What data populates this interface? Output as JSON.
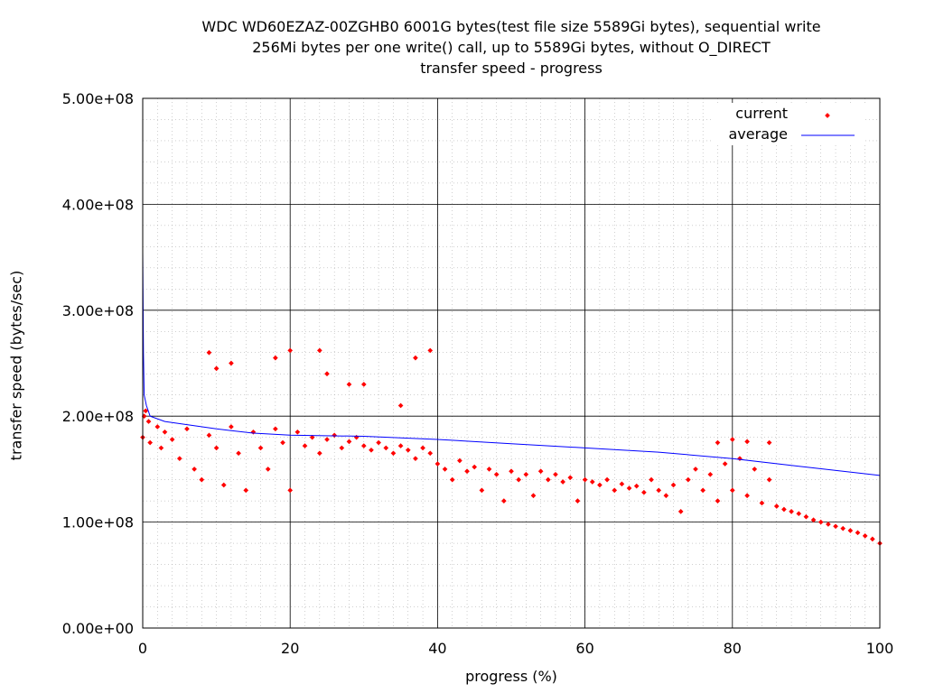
{
  "chart_data": {
    "type": "scatter",
    "title_lines": [
      "WDC WD60EZAZ-00ZGHB0 6001G bytes(test file size 5589Gi bytes), sequential write",
      "256Mi bytes per one write() call, up to 5589Gi bytes, without O_DIRECT",
      "transfer speed - progress"
    ],
    "xlabel": "progress (%)",
    "ylabel": "transfer speed (bytes/sec)",
    "xlim": [
      0,
      100
    ],
    "ylim": [
      0,
      500000000
    ],
    "x_ticks": [
      {
        "value": 0,
        "label": "0"
      },
      {
        "value": 20,
        "label": "20"
      },
      {
        "value": 40,
        "label": "40"
      },
      {
        "value": 60,
        "label": "60"
      },
      {
        "value": 80,
        "label": "80"
      },
      {
        "value": 100,
        "label": "100"
      }
    ],
    "y_ticks": [
      {
        "value": 0,
        "label": "0.00e+00"
      },
      {
        "value": 100000000,
        "label": "1.00e+08"
      },
      {
        "value": 200000000,
        "label": "2.00e+08"
      },
      {
        "value": 300000000,
        "label": "3.00e+08"
      },
      {
        "value": 400000000,
        "label": "4.00e+08"
      },
      {
        "value": 500000000,
        "label": "5.00e+08"
      }
    ],
    "grid": true,
    "legend_position": "top-right",
    "series": [
      {
        "name": "current",
        "type": "scatter",
        "color": "#ff0000",
        "points": [
          [
            0.0,
            180000000
          ],
          [
            0.2,
            200000000
          ],
          [
            0.4,
            205000000
          ],
          [
            0.8,
            195000000
          ],
          [
            1.0,
            175000000
          ],
          [
            2.0,
            190000000
          ],
          [
            2.5,
            170000000
          ],
          [
            3.0,
            185000000
          ],
          [
            4.0,
            178000000
          ],
          [
            5.0,
            160000000
          ],
          [
            6.0,
            188000000
          ],
          [
            7.0,
            150000000
          ],
          [
            8.0,
            140000000
          ],
          [
            9.0,
            182000000
          ],
          [
            10.0,
            170000000
          ],
          [
            11.0,
            135000000
          ],
          [
            12.0,
            190000000
          ],
          [
            13.0,
            165000000
          ],
          [
            14.0,
            130000000
          ],
          [
            15.0,
            185000000
          ],
          [
            16.0,
            170000000
          ],
          [
            17.0,
            150000000
          ],
          [
            18.0,
            188000000
          ],
          [
            19.0,
            175000000
          ],
          [
            20.0,
            130000000
          ],
          [
            21.0,
            185000000
          ],
          [
            22.0,
            172000000
          ],
          [
            23.0,
            180000000
          ],
          [
            24.0,
            165000000
          ],
          [
            25.0,
            178000000
          ],
          [
            26.0,
            182000000
          ],
          [
            27.0,
            170000000
          ],
          [
            28.0,
            176000000
          ],
          [
            29.0,
            180000000
          ],
          [
            30.0,
            172000000
          ],
          [
            31.0,
            168000000
          ],
          [
            32.0,
            175000000
          ],
          [
            33.0,
            170000000
          ],
          [
            34.0,
            165000000
          ],
          [
            35.0,
            172000000
          ],
          [
            36.0,
            168000000
          ],
          [
            37.0,
            160000000
          ],
          [
            38.0,
            170000000
          ],
          [
            39.0,
            165000000
          ],
          [
            40.0,
            155000000
          ],
          [
            41.0,
            150000000
          ],
          [
            42.0,
            140000000
          ],
          [
            43.0,
            158000000
          ],
          [
            44.0,
            148000000
          ],
          [
            45.0,
            152000000
          ],
          [
            46.0,
            130000000
          ],
          [
            47.0,
            150000000
          ],
          [
            48.0,
            145000000
          ],
          [
            49.0,
            120000000
          ],
          [
            50.0,
            148000000
          ],
          [
            51.0,
            140000000
          ],
          [
            52.0,
            145000000
          ],
          [
            53.0,
            125000000
          ],
          [
            54.0,
            148000000
          ],
          [
            55.0,
            140000000
          ],
          [
            56.0,
            145000000
          ],
          [
            57.0,
            138000000
          ],
          [
            58.0,
            142000000
          ],
          [
            59.0,
            120000000
          ],
          [
            60.0,
            140000000
          ],
          [
            61.0,
            138000000
          ],
          [
            62.0,
            135000000
          ],
          [
            63.0,
            140000000
          ],
          [
            64.0,
            130000000
          ],
          [
            65.0,
            136000000
          ],
          [
            66.0,
            132000000
          ],
          [
            67.0,
            134000000
          ],
          [
            68.0,
            128000000
          ],
          [
            69.0,
            140000000
          ],
          [
            70.0,
            130000000
          ],
          [
            71.0,
            125000000
          ],
          [
            72.0,
            135000000
          ],
          [
            73.0,
            110000000
          ],
          [
            74.0,
            140000000
          ],
          [
            75.0,
            150000000
          ],
          [
            76.0,
            130000000
          ],
          [
            77.0,
            145000000
          ],
          [
            78.0,
            120000000
          ],
          [
            79.0,
            155000000
          ],
          [
            80.0,
            130000000
          ],
          [
            81.0,
            160000000
          ],
          [
            82.0,
            125000000
          ],
          [
            83.0,
            150000000
          ],
          [
            84.0,
            118000000
          ],
          [
            85.0,
            140000000
          ],
          [
            86.0,
            115000000
          ],
          [
            87.0,
            112000000
          ],
          [
            88.0,
            110000000
          ],
          [
            89.0,
            108000000
          ],
          [
            90.0,
            105000000
          ],
          [
            91.0,
            102000000
          ],
          [
            92.0,
            100000000
          ],
          [
            93.0,
            98000000
          ],
          [
            94.0,
            96000000
          ],
          [
            95.0,
            94000000
          ],
          [
            96.0,
            92000000
          ],
          [
            97.0,
            90000000
          ],
          [
            98.0,
            87000000
          ],
          [
            99.0,
            84000000
          ],
          [
            100.0,
            80000000
          ],
          [
            9.0,
            260000000
          ],
          [
            10.0,
            245000000
          ],
          [
            12.0,
            250000000
          ],
          [
            18.0,
            255000000
          ],
          [
            20.0,
            262000000
          ],
          [
            24.0,
            262000000
          ],
          [
            25.0,
            240000000
          ],
          [
            28.0,
            230000000
          ],
          [
            30.0,
            230000000
          ],
          [
            37.0,
            255000000
          ],
          [
            39.0,
            262000000
          ],
          [
            35.0,
            210000000
          ],
          [
            78.0,
            175000000
          ],
          [
            80.0,
            178000000
          ],
          [
            82.0,
            176000000
          ],
          [
            85.0,
            175000000
          ]
        ]
      },
      {
        "name": "average",
        "type": "line",
        "color": "#0000ff",
        "points": [
          [
            0.0,
            355000000
          ],
          [
            0.1,
            260000000
          ],
          [
            0.2,
            220000000
          ],
          [
            0.5,
            210000000
          ],
          [
            1.0,
            200000000
          ],
          [
            3.0,
            195000000
          ],
          [
            6.0,
            192000000
          ],
          [
            10.0,
            188000000
          ],
          [
            15.0,
            184000000
          ],
          [
            20.0,
            182000000
          ],
          [
            30.0,
            181000000
          ],
          [
            40.0,
            178000000
          ],
          [
            50.0,
            174000000
          ],
          [
            60.0,
            170000000
          ],
          [
            70.0,
            166000000
          ],
          [
            80.0,
            160000000
          ],
          [
            90.0,
            152000000
          ],
          [
            100.0,
            144000000
          ]
        ]
      }
    ]
  }
}
